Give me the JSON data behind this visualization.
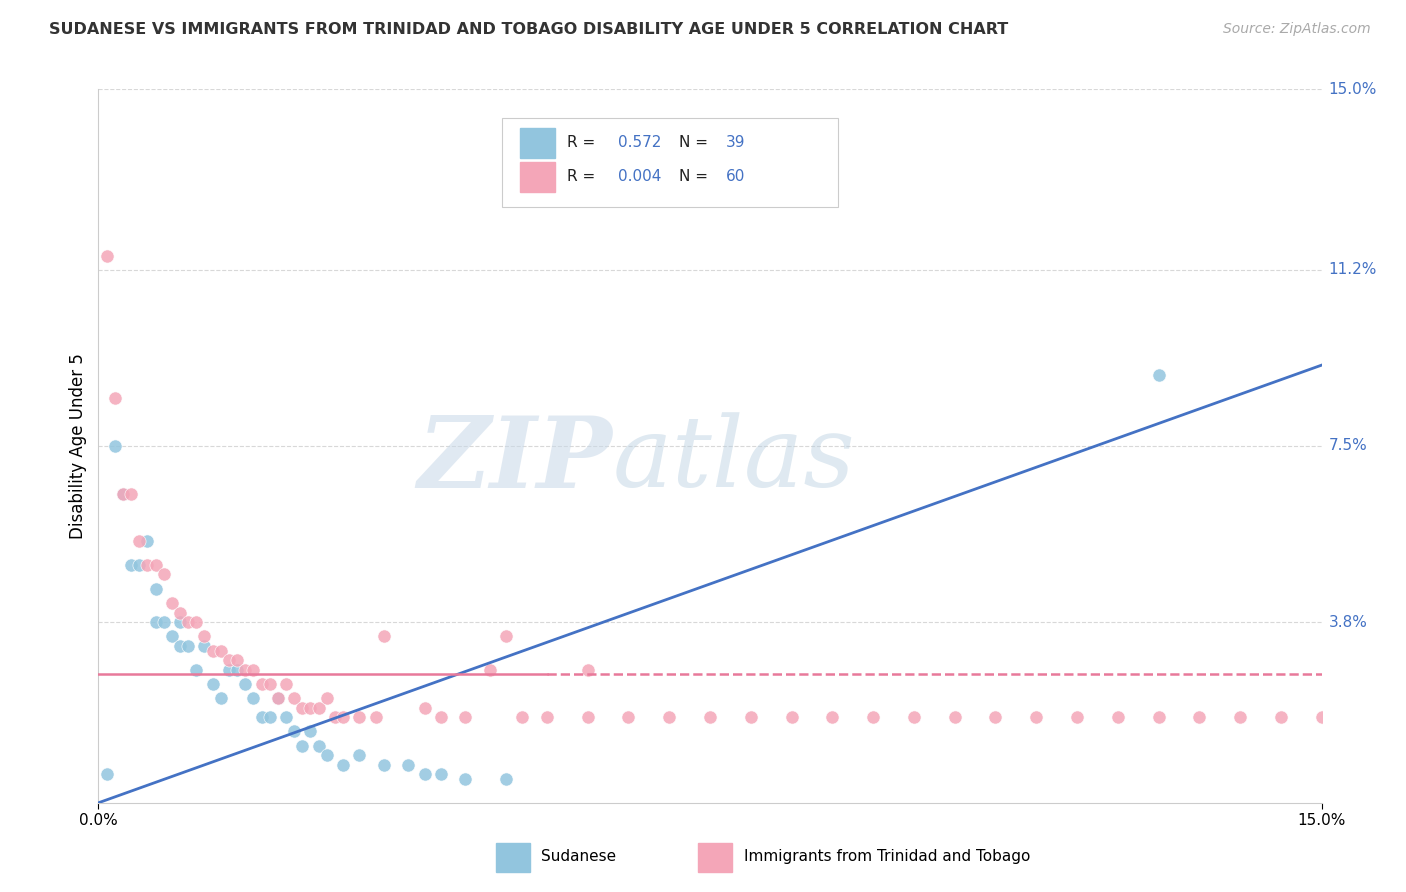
{
  "title": "SUDANESE VS IMMIGRANTS FROM TRINIDAD AND TOBAGO DISABILITY AGE UNDER 5 CORRELATION CHART",
  "source": "Source: ZipAtlas.com",
  "ylabel": "Disability Age Under 5",
  "xlim": [
    0.0,
    0.15
  ],
  "ylim": [
    0.0,
    0.15
  ],
  "ytick_values": [
    0.038,
    0.075,
    0.112,
    0.15
  ],
  "ytick_labels": [
    "3.8%",
    "7.5%",
    "11.2%",
    "15.0%"
  ],
  "color_blue": "#92c5de",
  "color_pink": "#f4a6b8",
  "regression_blue_x0": 0.0,
  "regression_blue_y0": 0.0,
  "regression_blue_x1": 0.15,
  "regression_blue_y1": 0.092,
  "regression_pink_y": 0.027,
  "regression_pink_solid_xmax": 0.055,
  "watermark_zip": "ZIP",
  "watermark_atlas": "atlas",
  "grid_color": "#d8d8d8",
  "legend_R1": "0.572",
  "legend_N1": "39",
  "legend_R2": "0.004",
  "legend_N2": "60",
  "legend_label1": "Sudanese",
  "legend_label2": "Immigrants from Trinidad and Tobago",
  "blue_label_color": "#4472c4",
  "sudanese_points": [
    [
      0.001,
      0.006
    ],
    [
      0.002,
      0.075
    ],
    [
      0.003,
      0.065
    ],
    [
      0.004,
      0.05
    ],
    [
      0.005,
      0.05
    ],
    [
      0.006,
      0.055
    ],
    [
      0.007,
      0.045
    ],
    [
      0.007,
      0.038
    ],
    [
      0.008,
      0.038
    ],
    [
      0.009,
      0.035
    ],
    [
      0.01,
      0.038
    ],
    [
      0.01,
      0.033
    ],
    [
      0.011,
      0.033
    ],
    [
      0.012,
      0.028
    ],
    [
      0.013,
      0.033
    ],
    [
      0.014,
      0.025
    ],
    [
      0.015,
      0.022
    ],
    [
      0.016,
      0.028
    ],
    [
      0.017,
      0.028
    ],
    [
      0.018,
      0.025
    ],
    [
      0.019,
      0.022
    ],
    [
      0.02,
      0.018
    ],
    [
      0.021,
      0.018
    ],
    [
      0.022,
      0.022
    ],
    [
      0.023,
      0.018
    ],
    [
      0.024,
      0.015
    ],
    [
      0.025,
      0.012
    ],
    [
      0.026,
      0.015
    ],
    [
      0.027,
      0.012
    ],
    [
      0.028,
      0.01
    ],
    [
      0.03,
      0.008
    ],
    [
      0.032,
      0.01
    ],
    [
      0.035,
      0.008
    ],
    [
      0.038,
      0.008
    ],
    [
      0.04,
      0.006
    ],
    [
      0.042,
      0.006
    ],
    [
      0.045,
      0.005
    ],
    [
      0.05,
      0.005
    ],
    [
      0.13,
      0.09
    ]
  ],
  "trinidad_points": [
    [
      0.001,
      0.115
    ],
    [
      0.002,
      0.085
    ],
    [
      0.003,
      0.065
    ],
    [
      0.004,
      0.065
    ],
    [
      0.005,
      0.055
    ],
    [
      0.006,
      0.05
    ],
    [
      0.007,
      0.05
    ],
    [
      0.008,
      0.048
    ],
    [
      0.009,
      0.042
    ],
    [
      0.01,
      0.04
    ],
    [
      0.011,
      0.038
    ],
    [
      0.012,
      0.038
    ],
    [
      0.013,
      0.035
    ],
    [
      0.014,
      0.032
    ],
    [
      0.015,
      0.032
    ],
    [
      0.016,
      0.03
    ],
    [
      0.017,
      0.03
    ],
    [
      0.018,
      0.028
    ],
    [
      0.019,
      0.028
    ],
    [
      0.02,
      0.025
    ],
    [
      0.021,
      0.025
    ],
    [
      0.022,
      0.022
    ],
    [
      0.023,
      0.025
    ],
    [
      0.024,
      0.022
    ],
    [
      0.025,
      0.02
    ],
    [
      0.026,
      0.02
    ],
    [
      0.027,
      0.02
    ],
    [
      0.028,
      0.022
    ],
    [
      0.029,
      0.018
    ],
    [
      0.03,
      0.018
    ],
    [
      0.032,
      0.018
    ],
    [
      0.034,
      0.018
    ],
    [
      0.035,
      0.035
    ],
    [
      0.04,
      0.02
    ],
    [
      0.042,
      0.018
    ],
    [
      0.045,
      0.018
    ],
    [
      0.048,
      0.028
    ],
    [
      0.05,
      0.035
    ],
    [
      0.052,
      0.018
    ],
    [
      0.055,
      0.018
    ],
    [
      0.06,
      0.018
    ],
    [
      0.065,
      0.018
    ],
    [
      0.07,
      0.018
    ],
    [
      0.075,
      0.018
    ],
    [
      0.08,
      0.018
    ],
    [
      0.085,
      0.018
    ],
    [
      0.09,
      0.018
    ],
    [
      0.095,
      0.018
    ],
    [
      0.1,
      0.018
    ],
    [
      0.105,
      0.018
    ],
    [
      0.11,
      0.018
    ],
    [
      0.115,
      0.018
    ],
    [
      0.12,
      0.018
    ],
    [
      0.125,
      0.018
    ],
    [
      0.13,
      0.018
    ],
    [
      0.135,
      0.018
    ],
    [
      0.14,
      0.018
    ],
    [
      0.145,
      0.018
    ],
    [
      0.15,
      0.018
    ],
    [
      0.06,
      0.028
    ]
  ]
}
